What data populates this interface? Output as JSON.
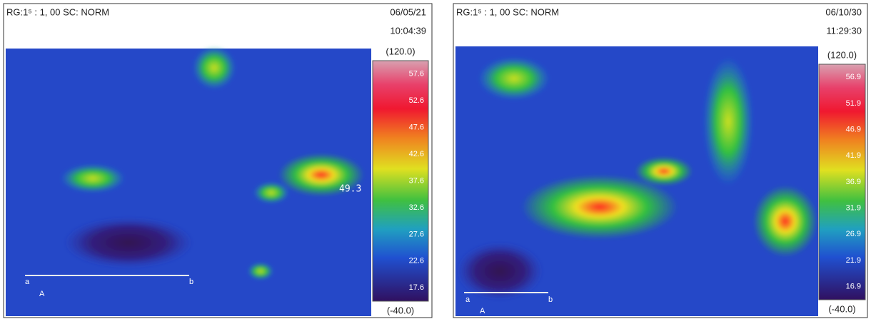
{
  "panels": [
    {
      "header": "RG:1⁵ : 1, 00 SC: NORM",
      "date": "06/05/21",
      "time": "10:04:39",
      "scale_max": "(120.0)",
      "scale_min": "(-40.0)",
      "scale_labels": [
        "57.6",
        "52.6",
        "47.6",
        "42.6",
        "37.6",
        "32.6",
        "27.6",
        "22.6",
        "17.6"
      ],
      "spot_label": "49.3",
      "line_start": "a",
      "line_end": "b",
      "line_name": "A"
    },
    {
      "header": "RG:1⁵ : 1, 00 SC: NORM",
      "date": "06/10/30",
      "time": "11:29:30",
      "scale_max": "(120.0)",
      "scale_min": "(-40.0)",
      "scale_labels": [
        "56.9",
        "51.9",
        "46.9",
        "41.9",
        "36.9",
        "31.9",
        "26.9",
        "21.9",
        "16.9"
      ],
      "line_start": "a",
      "line_end": "b",
      "line_name": "A"
    }
  ]
}
